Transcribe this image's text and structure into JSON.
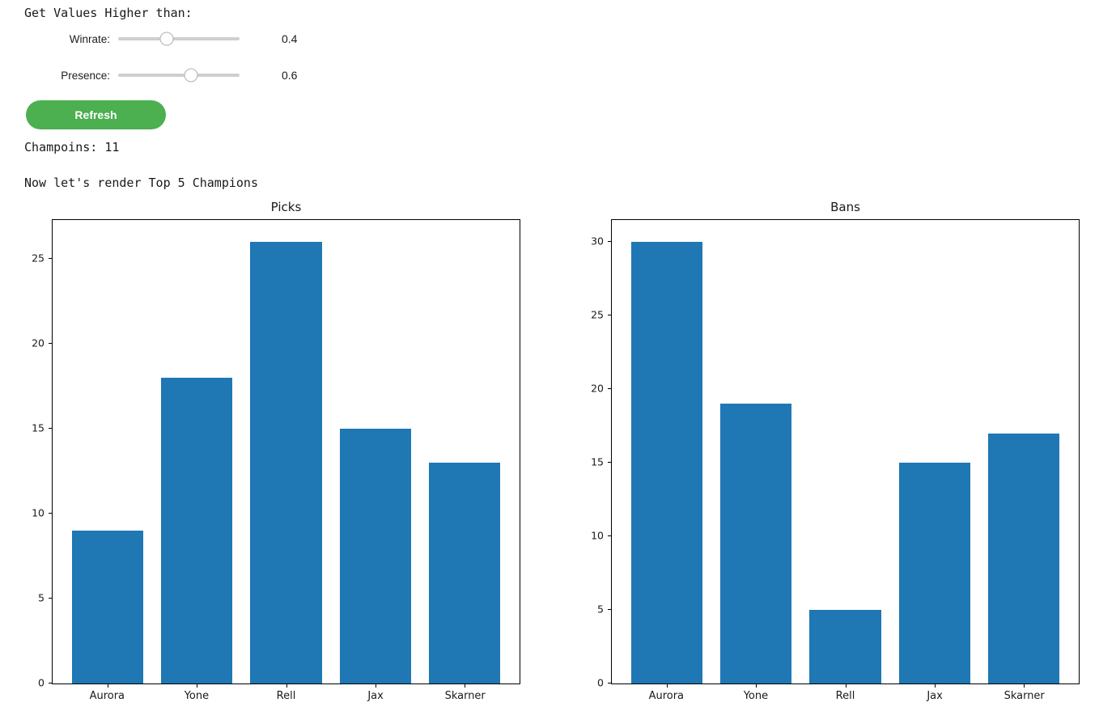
{
  "controls": {
    "heading": "Get Values Higher than:",
    "sliders": [
      {
        "id": "winrate",
        "label": "Winrate:",
        "value": "0.4"
      },
      {
        "id": "presence",
        "label": "Presence:",
        "value": "0.6"
      }
    ],
    "refresh_label": "Refresh",
    "champions_text": "Champoins: 11",
    "render_text": "Now let's render Top 5 Champions"
  },
  "colors": {
    "bar": "#1f77b4",
    "button_green": "#4caf50",
    "slider_track": "#cfcfcf"
  },
  "chart_data": [
    {
      "type": "bar",
      "title": "Picks",
      "categories": [
        "Aurora",
        "Yone",
        "Rell",
        "Jax",
        "Skarner"
      ],
      "values": [
        9,
        18,
        26,
        15,
        13
      ],
      "xlabel": "",
      "ylabel": "",
      "yticks": [
        0,
        5,
        10,
        15,
        20,
        25
      ],
      "ylim": [
        0,
        27.3
      ],
      "grid": false,
      "legend": "none"
    },
    {
      "type": "bar",
      "title": "Bans",
      "categories": [
        "Aurora",
        "Yone",
        "Rell",
        "Jax",
        "Skarner"
      ],
      "values": [
        30,
        19,
        5,
        15,
        17
      ],
      "xlabel": "",
      "ylabel": "",
      "yticks": [
        0,
        5,
        10,
        15,
        20,
        25,
        30
      ],
      "ylim": [
        0,
        31.5
      ],
      "grid": false,
      "legend": "none"
    }
  ]
}
